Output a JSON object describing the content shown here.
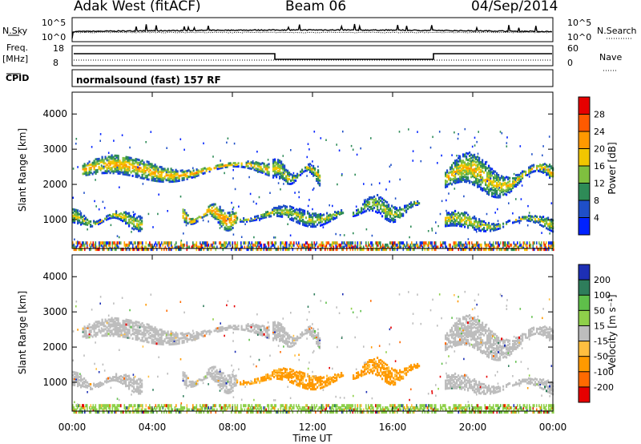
{
  "header": {
    "station": "Adak West (fitACF)",
    "beam": "Beam 06",
    "date": "04/Sep/2014"
  },
  "top_panels": {
    "nsky_label": "N.Sky",
    "nsky_ticks": [
      "10^5",
      "10^0"
    ],
    "nsearch_label": "N.Search",
    "nsearch_ticks": [
      "10^5",
      "10^0"
    ],
    "freq_label_line1": "Freq.",
    "freq_label_line2": "[MHz]",
    "freq_ticks": [
      "18",
      "8"
    ],
    "nave_label": "Nave",
    "nave_ticks": [
      "60",
      "0"
    ],
    "cpid_label": "CPID",
    "cpid_text": "normalsound (fast) 157 RF"
  },
  "chart_data": [
    {
      "type": "heatmap",
      "panel": "power",
      "ylabel": "Slant Range [km]",
      "yticks": [
        "1000",
        "2000",
        "3000",
        "4000"
      ],
      "ylim": [
        180,
        4620
      ],
      "xlim": [
        0,
        24
      ],
      "colorbar": {
        "label": "Power [dB]",
        "ticks": [
          "4",
          "8",
          "12",
          "16",
          "20",
          "24",
          "28"
        ],
        "range": [
          0,
          32
        ]
      },
      "echo_regions": [
        {
          "t": [
            0.5,
            9.8
          ],
          "range": [
            2000,
            2900
          ],
          "peak_db": 22
        },
        {
          "t": [
            10.0,
            12.4
          ],
          "range": [
            1900,
            2800
          ],
          "peak_db": 18
        },
        {
          "t": [
            0.0,
            3.5
          ],
          "range": [
            700,
            1400
          ],
          "peak_db": 18
        },
        {
          "t": [
            5.5,
            8.2
          ],
          "range": [
            700,
            1600
          ],
          "peak_db": 24
        },
        {
          "t": [
            8.2,
            13.5
          ],
          "range": [
            800,
            1500
          ],
          "peak_db": 16
        },
        {
          "t": [
            14.0,
            17.3
          ],
          "range": [
            900,
            1800
          ],
          "peak_db": 16
        },
        {
          "t": [
            18.6,
            24.0
          ],
          "range": [
            1500,
            3000
          ],
          "peak_db": 20
        },
        {
          "t": [
            18.6,
            24.0
          ],
          "range": [
            600,
            1300
          ],
          "peak_db": 18
        }
      ]
    },
    {
      "type": "heatmap",
      "panel": "velocity",
      "ylabel": "Slant Range [km]",
      "yticks": [
        "1000",
        "2000",
        "3000",
        "4000"
      ],
      "ylim": [
        180,
        4620
      ],
      "xlabel": "Time UT",
      "xticks": [
        "00:00",
        "04:00",
        "08:00",
        "12:00",
        "16:00",
        "20:00",
        "00:00"
      ],
      "xlim": [
        0,
        24
      ],
      "colorbar": {
        "label": "Velocity [m s⁻¹]",
        "ticks": [
          "200",
          "100",
          "50",
          "15",
          "-15",
          "-50",
          "-100",
          "-200"
        ]
      },
      "echo_regions": [
        {
          "t": [
            0.5,
            12.4
          ],
          "range": [
            1900,
            2900
          ],
          "velocity": "ground scatter (|v|<15)"
        },
        {
          "t": [
            0.0,
            8.2
          ],
          "range": [
            700,
            1600
          ],
          "velocity": "ground scatter (|v|<15)"
        },
        {
          "t": [
            8.5,
            13.5
          ],
          "range": [
            800,
            1600
          ],
          "velocity": "-15 to -50"
        },
        {
          "t": [
            14.0,
            17.3
          ],
          "range": [
            900,
            1800
          ],
          "velocity": "-15 to -50"
        },
        {
          "t": [
            18.6,
            24.0
          ],
          "range": [
            600,
            3000
          ],
          "velocity": "ground scatter (|v|<15)"
        }
      ]
    }
  ],
  "colors": {
    "power_scale": [
      "#0022ff",
      "#1f4fc8",
      "#2e8b57",
      "#7fbf3f",
      "#f2c600",
      "#ff9900",
      "#ff5a00",
      "#e60000"
    ],
    "velocity_scale": [
      "#1d2fb5",
      "#2e7d5b",
      "#5fbf4a",
      "#8fd04a",
      "#ffbf40",
      "#ff9a00",
      "#ff6a00",
      "#e60000"
    ],
    "ground_scatter": "#bdbdbd"
  }
}
